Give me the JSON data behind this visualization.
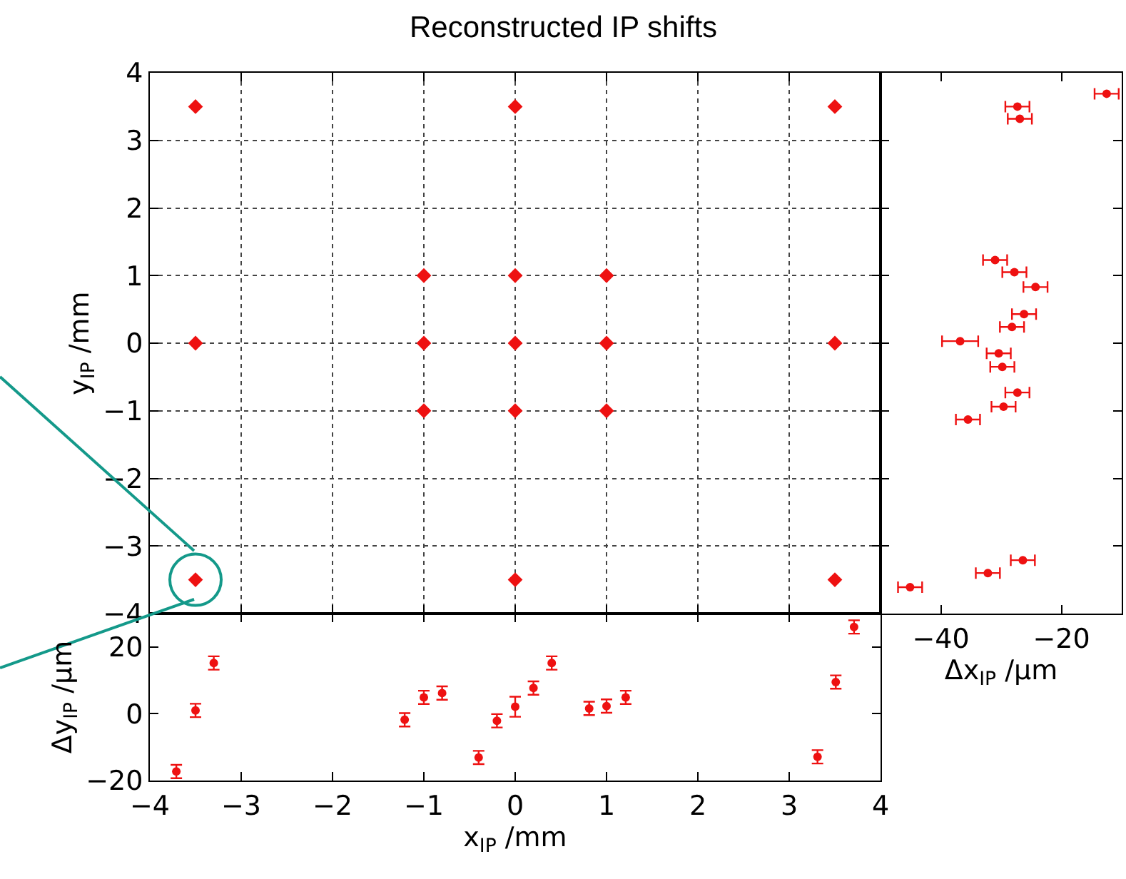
{
  "chart_data": [
    {
      "type": "scatter",
      "title": "Reconstructed IP shifts",
      "ylabel": "y$_{IP}$ /mm",
      "xlim": [
        -4,
        4
      ],
      "xticks": [
        -4,
        -3,
        -2,
        -1,
        0,
        1,
        2,
        3,
        4
      ],
      "ylim": [
        -4,
        4
      ],
      "yticks": [
        -4,
        -3,
        -2,
        -1,
        0,
        1,
        2,
        3,
        4
      ],
      "grid": true,
      "tick_labels": "y",
      "marker": "diamond",
      "series": [
        {
          "color": "#ee1111",
          "x": [
            -3.5,
            0,
            3.5,
            -1,
            0,
            1,
            -3.5,
            -1,
            0,
            1,
            3.5,
            -1,
            0,
            1,
            -3.5,
            0,
            3.5
          ],
          "values": [
            3.5,
            3.5,
            3.5,
            1,
            1,
            1,
            0,
            0,
            0,
            0,
            0,
            -1,
            -1,
            -1,
            -3.5,
            -3.5,
            -3.5
          ]
        }
      ]
    },
    {
      "type": "scatter",
      "xlabel": "Δx$_{IP}$ /μm",
      "xlim": [
        -50,
        -10
      ],
      "xticks": [
        -40,
        -20
      ],
      "ylim": [
        -4,
        4
      ],
      "yticks": [
        -4,
        -3,
        -2,
        -1,
        0,
        1,
        2,
        3,
        4
      ],
      "tick_labels": "x",
      "series": [
        {
          "color": "#ee1111",
          "x": [
            -12.5,
            -27.3,
            -26.9,
            -31.0,
            -27.8,
            -24.3,
            -26.2,
            -28.2,
            -36.8,
            -30.4,
            -29.8,
            -27.3,
            -29.6,
            -35.5,
            -26.4,
            -32.2,
            -45.1
          ],
          "values": [
            3.69,
            3.5,
            3.32,
            1.23,
            1.05,
            0.83,
            0.43,
            0.24,
            0.03,
            -0.15,
            -0.35,
            -0.73,
            -0.94,
            -1.13,
            -3.21,
            -3.4,
            -3.61
          ],
          "xerrors": [
            2,
            2,
            2,
            2,
            2,
            2,
            2,
            2,
            3,
            2,
            2,
            2,
            2,
            2,
            2,
            2,
            2
          ]
        }
      ]
    },
    {
      "type": "scatter",
      "xlabel": "x$_{IP}$ /mm",
      "ylabel": "Δy$_{IP}$ /μm",
      "xlim": [
        -4,
        4
      ],
      "xticks": [
        -4,
        -3,
        -2,
        -1,
        0,
        1,
        2,
        3,
        4
      ],
      "ylim": [
        -20,
        30
      ],
      "yticks": [
        -20,
        0,
        20
      ],
      "series": [
        {
          "color": "#ee1111",
          "x": [
            -3.71,
            -3.5,
            -3.3,
            -1.21,
            -1.0,
            -0.8,
            -0.4,
            -0.2,
            0.0,
            0.2,
            0.4,
            0.81,
            1.0,
            1.21,
            3.31,
            3.51,
            3.71
          ],
          "values": [
            -17.3,
            1.0,
            15.2,
            -1.8,
            4.9,
            6.2,
            -13.1,
            -2.1,
            2.1,
            7.7,
            15.2,
            1.6,
            2.3,
            4.9,
            -12.9,
            9.5,
            26.0
          ],
          "errors": [
            2,
            2,
            2,
            2,
            2,
            2,
            2,
            2,
            3,
            2,
            2,
            2,
            2,
            2,
            2,
            2,
            2
          ]
        }
      ]
    }
  ]
}
